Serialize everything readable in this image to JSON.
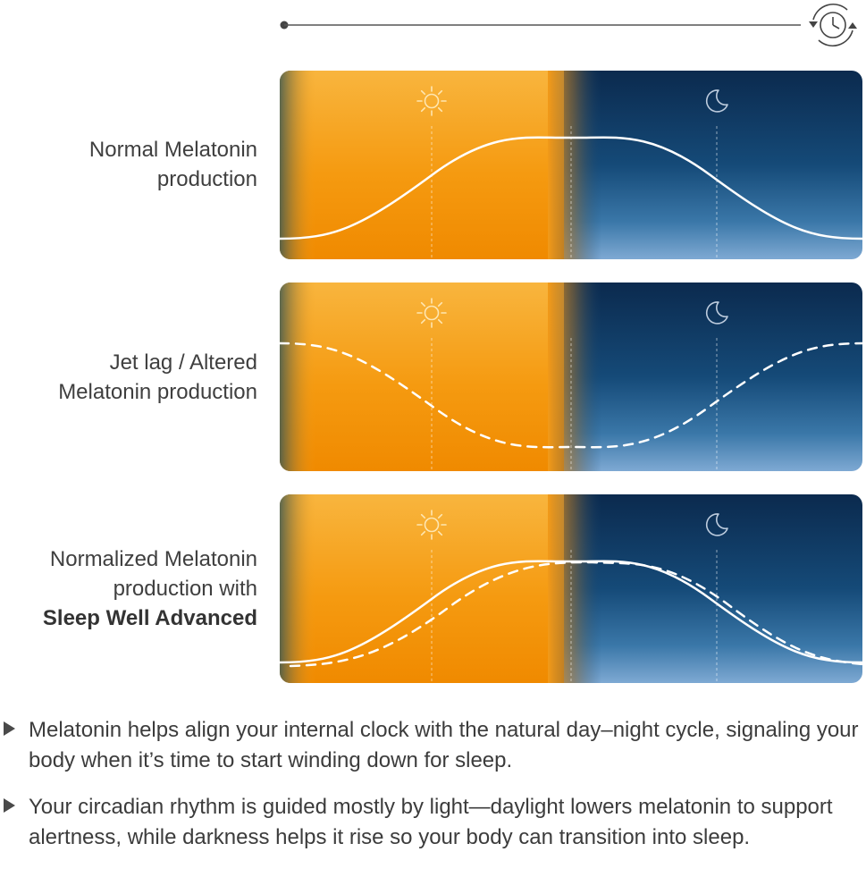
{
  "timeline": {
    "icon": "clock-cycle-icon"
  },
  "rows": [
    {
      "label_lines": [
        "Normal Melatonin",
        "production"
      ],
      "label_bold": "",
      "day_icon": "sun-icon",
      "night_icon": "moon-icon",
      "curves": [
        {
          "style": "solid",
          "shape": "peak-at-sunset"
        }
      ]
    },
    {
      "label_lines": [
        "Jet lag / Altered",
        "Melatonin production"
      ],
      "label_bold": "",
      "day_icon": "sun-icon",
      "night_icon": "moon-icon",
      "curves": [
        {
          "style": "dashed",
          "shape": "trough-at-sunset"
        }
      ]
    },
    {
      "label_lines": [
        "Normalized Melatonin",
        "production with"
      ],
      "label_bold": "Sleep Well Advanced",
      "day_icon": "sun-icon",
      "night_icon": "moon-icon",
      "curves": [
        {
          "style": "solid",
          "shape": "peak-at-sunset"
        },
        {
          "style": "dashed",
          "shape": "peak-slightly-later"
        }
      ]
    }
  ],
  "colors": {
    "day_light": "#f8b53e",
    "day_dark": "#f08a00",
    "night_dark": "#0b2a4e",
    "night_light": "#7ea9d3",
    "curve": "#ffffff"
  },
  "bullets": [
    {
      "icon": "triangle-bullet-icon",
      "text": "Melatonin helps align your internal clock with the natural day–night cycle, signaling your body when it’s time to start winding down for sleep."
    },
    {
      "icon": "triangle-bullet-icon",
      "text": "Your circadian rhythm is guided mostly by light—daylight lowers melatonin to support alertness, while darkness helps it rise so your body can transition into sleep."
    }
  ]
}
